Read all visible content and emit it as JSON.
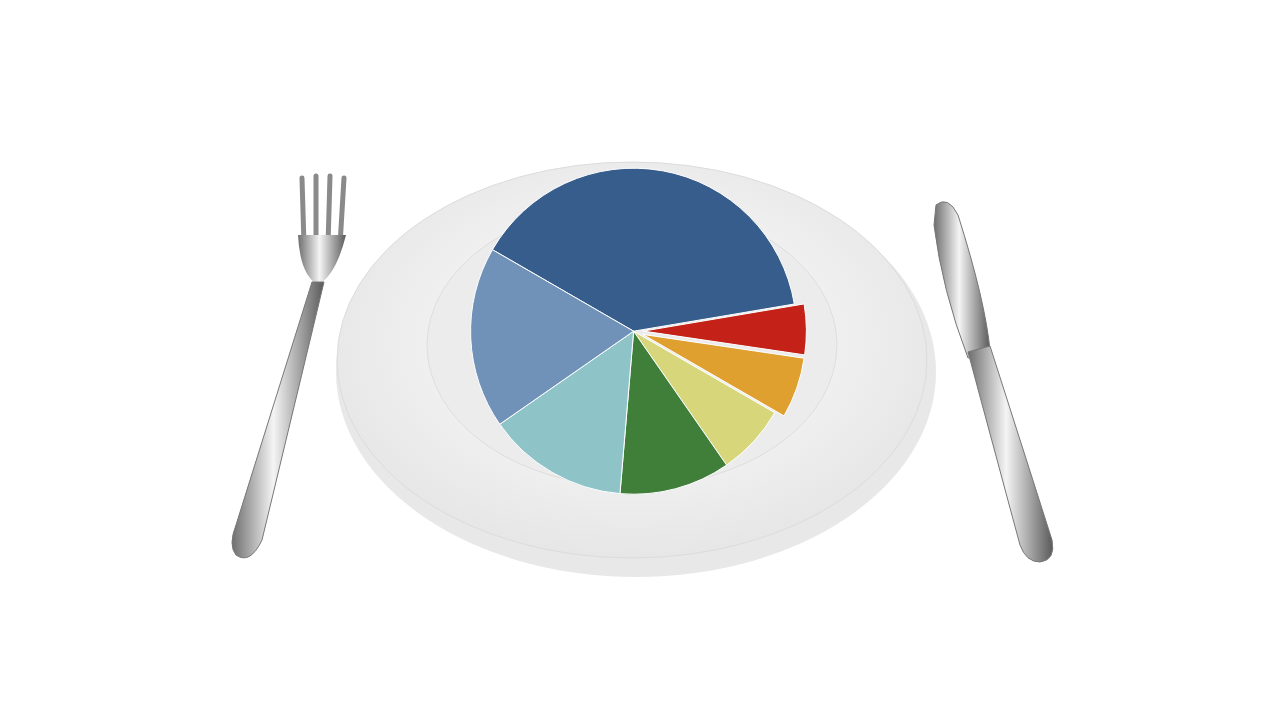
{
  "chart_data": {
    "type": "pie",
    "values": [
      39,
      5,
      6,
      7,
      11,
      14,
      18
    ],
    "colors": [
      "#365d8c",
      "#c42218",
      "#e0a030",
      "#d8d67a",
      "#3f7f3a",
      "#8ec4c8",
      "#7092b9"
    ],
    "data_labels": false
  }
}
